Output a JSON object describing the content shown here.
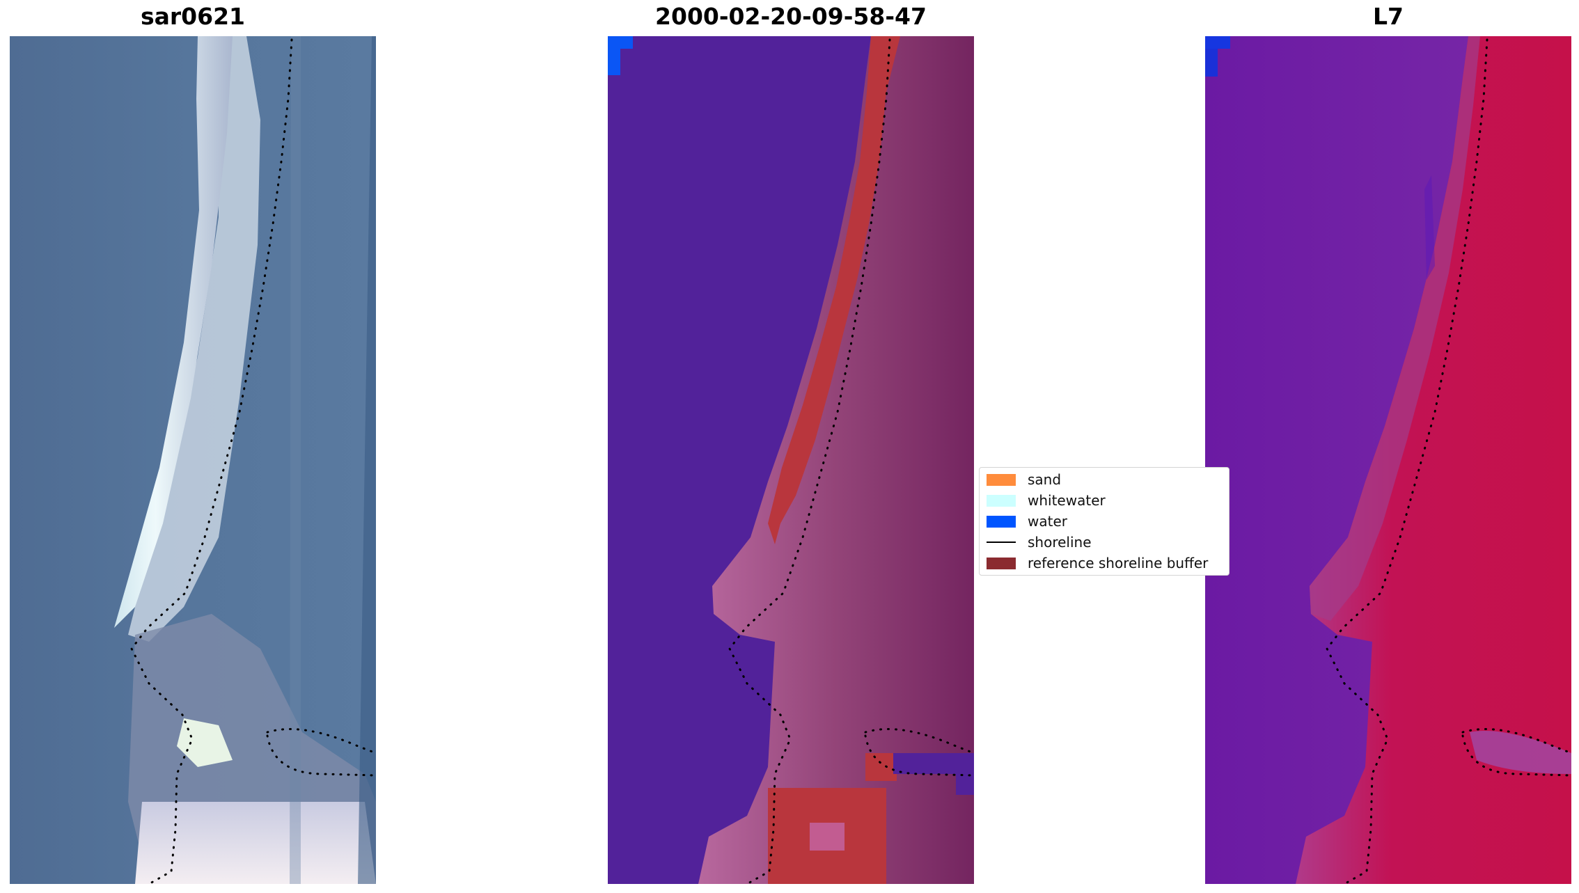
{
  "panels": [
    {
      "title": "sar0621",
      "style": "true-color satellite image"
    },
    {
      "title": "2000-02-20-09-58-47",
      "style": "classified image"
    },
    {
      "title": "L7",
      "style": "false-color image"
    }
  ],
  "legend": {
    "items": [
      {
        "label": "sand",
        "kind": "patch",
        "color": "#ff8c3c"
      },
      {
        "label": "whitewater",
        "kind": "patch",
        "color": "#ccffff"
      },
      {
        "label": "water",
        "kind": "patch",
        "color": "#0055ff"
      },
      {
        "label": "shoreline",
        "kind": "line",
        "color": "#000000"
      },
      {
        "label": "reference shoreline buffer",
        "kind": "patch",
        "color": "#8b2b30"
      }
    ]
  },
  "colors": {
    "water_class": "#52229a",
    "water_edge": "#0a56f5",
    "buffer": "#b9363d",
    "land_dark": "#7a2a63",
    "land_light": "#bb6aa0",
    "ocean_true": "#4f6e95",
    "beach_true": "#e4f3f6",
    "ocean_false": "#6b1aa0",
    "land_false": "#c41145"
  }
}
